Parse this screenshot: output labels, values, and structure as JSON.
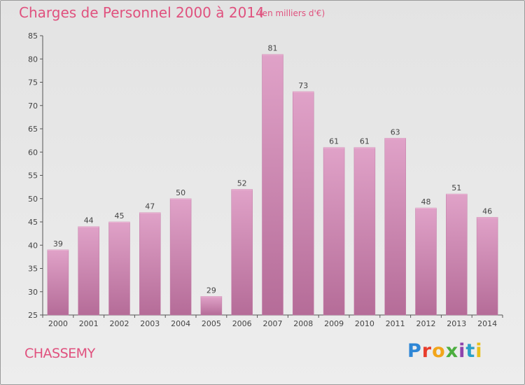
{
  "chart_data": {
    "type": "bar",
    "title": "Charges de Personnel 2000 à 2014",
    "subtitle": "(en milliers d'€)",
    "categories": [
      "2000",
      "2001",
      "2002",
      "2003",
      "2004",
      "2005",
      "2006",
      "2007",
      "2008",
      "2009",
      "2010",
      "2011",
      "2012",
      "2013",
      "2014"
    ],
    "values": [
      39,
      44,
      45,
      47,
      50,
      29,
      52,
      81,
      73,
      61,
      61,
      63,
      48,
      51,
      46
    ],
    "ylim": [
      25,
      85
    ],
    "yticks": [
      25,
      30,
      35,
      40,
      45,
      50,
      55,
      60,
      65,
      70,
      75,
      80,
      85
    ],
    "grid": false,
    "bar_color": "#d58ab5"
  },
  "place": "CHASSEMY",
  "logo": {
    "p": "P",
    "r": "r",
    "o": "o",
    "x": "x",
    "i": "i",
    "t": "t",
    "i2": "i"
  }
}
